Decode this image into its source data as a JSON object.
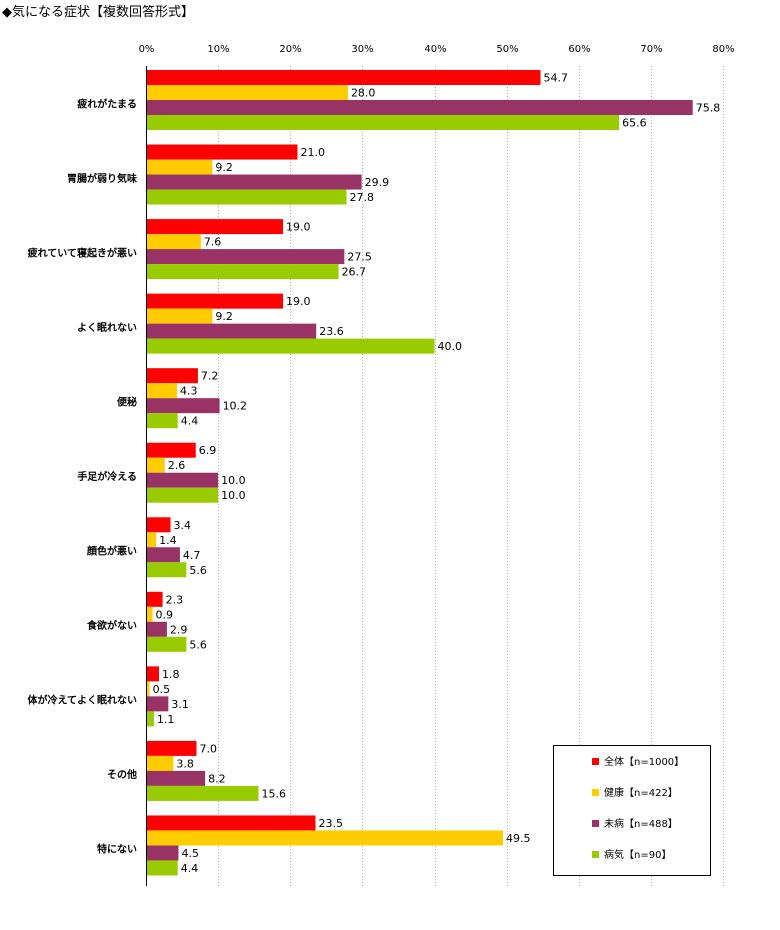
{
  "chart_data": {
    "type": "bar",
    "orientation": "horizontal",
    "title": "◆気になる症状【複数回答形式】",
    "xlim": [
      0,
      80
    ],
    "x_ticks": [
      "0%",
      "10%",
      "20%",
      "30%",
      "40%",
      "50%",
      "60%",
      "70%",
      "80%"
    ],
    "grid": true,
    "legend_position": "bottom-right",
    "categories": [
      "疲れがたまる",
      "胃腸が弱り気味",
      "疲れていて寝起きが悪い",
      "よく眠れない",
      "便秘",
      "手足が冷える",
      "顔色が悪い",
      "食欲がない",
      "体が冷えてよく眠れない",
      "その他",
      "特にない"
    ],
    "series": [
      {
        "name": "全体【n=1000】",
        "color": "#ff0000",
        "values": [
          54.7,
          21.0,
          19.0,
          19.0,
          7.2,
          6.9,
          3.4,
          2.3,
          1.8,
          7.0,
          23.5
        ]
      },
      {
        "name": "健康【n=422】",
        "color": "#ffcc00",
        "values": [
          28.0,
          9.2,
          7.6,
          9.2,
          4.3,
          2.6,
          1.4,
          0.9,
          0.5,
          3.8,
          49.5
        ]
      },
      {
        "name": "未病【n=488】",
        "color": "#993366",
        "values": [
          75.8,
          29.9,
          27.5,
          23.6,
          10.2,
          10.0,
          4.7,
          2.9,
          3.1,
          8.2,
          4.5
        ]
      },
      {
        "name": "病気【n=90】",
        "color": "#99cc00",
        "values": [
          65.6,
          27.8,
          26.7,
          40.0,
          4.4,
          10.0,
          5.6,
          5.6,
          1.1,
          15.6,
          4.4
        ]
      }
    ]
  }
}
